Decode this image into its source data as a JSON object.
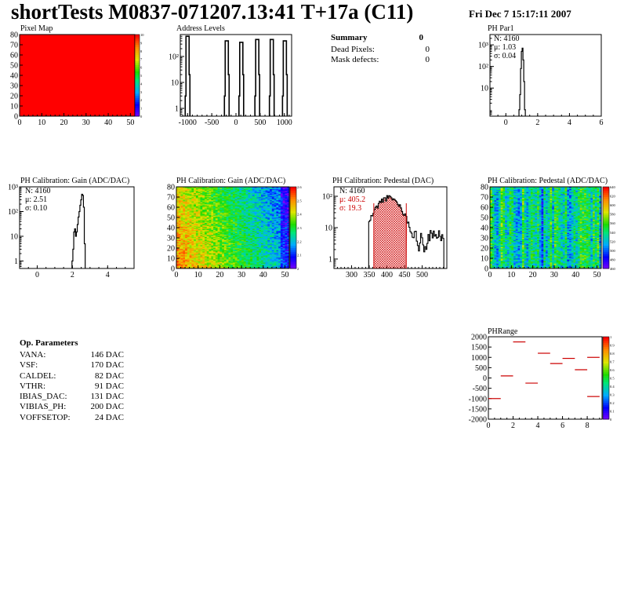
{
  "header": {
    "title": "shortTests M0837-071207.13:41 T+17a (C11)",
    "date": "Fri Dec  7 15:17:11 2007"
  },
  "summary": {
    "title": "Summary",
    "total": "0",
    "rows": [
      {
        "label": "Dead Pixels:",
        "value": "0"
      },
      {
        "label": "Mask defects:",
        "value": "0"
      }
    ]
  },
  "op_params": {
    "title": "Op. Parameters",
    "rows": [
      {
        "label": "VANA:",
        "value": "146 DAC"
      },
      {
        "label": "VSF:",
        "value": "170 DAC"
      },
      {
        "label": "CALDEL:",
        "value": "82 DAC"
      },
      {
        "label": "VTHR:",
        "value": "91 DAC"
      },
      {
        "label": "IBIAS_DAC:",
        "value": "131 DAC"
      },
      {
        "label": "VIBIAS_PH:",
        "value": "200 DAC"
      },
      {
        "label": "VOFFSETOP:",
        "value": "24 DAC"
      }
    ]
  },
  "colors": {
    "heat_uniform": "#ff0000",
    "hist_line": "#000000",
    "pedestal_hatch": "#cc0000",
    "cut_line": "#cc0000",
    "stats_red": "#cc0000"
  },
  "chart_data": [
    {
      "id": "pixel-map",
      "type": "heatmap",
      "title": "Pixel Map",
      "xlim": [
        0,
        52
      ],
      "ylim": [
        0,
        80
      ],
      "xticks": [
        "0",
        "10",
        "20",
        "30",
        "40",
        "50"
      ],
      "yticks": [
        "0",
        "10",
        "20",
        "30",
        "40",
        "50",
        "60",
        "70",
        "80"
      ],
      "uniform_value": 10,
      "zlim": [
        0,
        10
      ],
      "palette_ticks": [
        "10",
        "9",
        "8",
        "7",
        "6",
        "5",
        "4",
        "3",
        "2",
        "1",
        "0"
      ]
    },
    {
      "id": "address-levels",
      "type": "bar",
      "title": "Address Levels",
      "xlim": [
        -1150,
        1150
      ],
      "yscale": "log",
      "ylim": [
        0.5,
        700
      ],
      "xticks": [
        "-1000",
        "-500",
        "0",
        "500",
        "1000"
      ],
      "yticks": [
        "1",
        "10",
        "10²"
      ],
      "peaks": [
        {
          "x": -1000,
          "y": 600
        },
        {
          "x": -190,
          "y": 400
        },
        {
          "x": 110,
          "y": 350
        },
        {
          "x": 440,
          "y": 450
        },
        {
          "x": 740,
          "y": 450
        },
        {
          "x": 1010,
          "y": 400
        }
      ]
    },
    {
      "id": "ph-par1",
      "type": "bar",
      "title": "PH Par1",
      "xlim": [
        -1,
        6
      ],
      "yscale": "log",
      "ylim": [
        0.5,
        3000
      ],
      "xticks": [
        "0",
        "2",
        "4",
        "6"
      ],
      "yticks": [
        "10",
        "10²",
        "10³"
      ],
      "stats": {
        "N": "N: 4160",
        "mu": "μ: 1.03",
        "sigma": "σ: 0.04"
      },
      "x": [
        0.85,
        0.9,
        0.95,
        1.0,
        1.05,
        1.1,
        1.15,
        1.2
      ],
      "values": [
        1,
        5,
        80,
        500,
        700,
        200,
        20,
        1
      ]
    },
    {
      "id": "ph-gain-1d",
      "type": "bar",
      "title": "PH Calibration: Gain (ADC/DAC)",
      "xlim": [
        -1,
        5.5
      ],
      "yscale": "log",
      "ylim": [
        0.5,
        1000
      ],
      "xticks": [
        "0",
        "2",
        "4"
      ],
      "yticks": [
        "1",
        "10",
        "10²",
        "10³"
      ],
      "stats": {
        "N": "N: 4160",
        "mu": "μ: 2.51",
        "sigma": "σ: 0.10"
      },
      "x": [
        2.0,
        2.05,
        2.1,
        2.15,
        2.2,
        2.25,
        2.3,
        2.35,
        2.4,
        2.45,
        2.5,
        2.55,
        2.6,
        2.65,
        2.7
      ],
      "values": [
        1,
        3,
        15,
        20,
        10,
        15,
        30,
        60,
        100,
        180,
        300,
        500,
        450,
        150,
        5
      ]
    },
    {
      "id": "ph-gain-map",
      "type": "heatmap",
      "title": "PH Calibration: Gain (ADC/DAC)",
      "xlim": [
        0,
        52
      ],
      "ylim": [
        0,
        80
      ],
      "xticks": [
        "0",
        "10",
        "20",
        "30",
        "40",
        "50"
      ],
      "yticks": [
        "0",
        "10",
        "20",
        "30",
        "40",
        "50",
        "60",
        "70",
        "80"
      ],
      "zlim": [
        2.0,
        2.7
      ],
      "palette_ticks": [
        "2.6",
        "2.5",
        "2.4",
        "2.3",
        "2.2",
        "2.1",
        "2"
      ]
    },
    {
      "id": "ph-pedestal-1d",
      "type": "bar",
      "title": "PH Calibration: Pedestal (DAC)",
      "xlim": [
        250,
        570
      ],
      "yscale": "log",
      "ylim": [
        0.5,
        200
      ],
      "xticks": [
        "300",
        "350",
        "400",
        "450",
        "500"
      ],
      "yticks": [
        "1",
        "10",
        "10²"
      ],
      "stats": {
        "N": "N: 4160",
        "mu": "μ: 405.2",
        "sigma": "σ: 19.3"
      },
      "cut_lines": [
        363,
        455
      ],
      "fill_range": [
        363,
        455
      ],
      "mean": 405,
      "sigma_value": 19.3,
      "peak": 90,
      "range": [
        350,
        560
      ]
    },
    {
      "id": "ph-pedestal-map",
      "type": "heatmap",
      "title": "PH Calibration: Pedestal (ADC/DAC)",
      "xlim": [
        0,
        52
      ],
      "ylim": [
        0,
        80
      ],
      "xticks": [
        "0",
        "10",
        "20",
        "30",
        "40",
        "50"
      ],
      "yticks": [
        "0",
        "10",
        "20",
        "30",
        "40",
        "50",
        "60",
        "70",
        "80"
      ],
      "zlim": [
        460,
        640
      ],
      "palette_ticks": [
        "640",
        "620",
        "600",
        "580",
        "560",
        "540",
        "520",
        "500",
        "480",
        "460"
      ]
    },
    {
      "id": "ph-range",
      "type": "scatter",
      "title": "PHRange",
      "xlim": [
        0,
        9.2
      ],
      "ylim": [
        -2000,
        2000
      ],
      "xticks": [
        "0",
        "2",
        "4",
        "6",
        "8"
      ],
      "yticks": [
        "2000",
        "1500",
        "1000",
        "500",
        "0",
        "-500",
        "-1000",
        "-1500",
        "-2000"
      ],
      "segments": [
        {
          "x": 0,
          "y": -1000
        },
        {
          "x": 1,
          "y": 100
        },
        {
          "x": 2,
          "y": 1750
        },
        {
          "x": 3,
          "y": -250
        },
        {
          "x": 4,
          "y": 1200
        },
        {
          "x": 5,
          "y": 700
        },
        {
          "x": 6,
          "y": 950
        },
        {
          "x": 7,
          "y": 400
        },
        {
          "x": 8,
          "y": 1000
        },
        {
          "x": 8,
          "y": -900
        }
      ],
      "palette_ticks": [
        "1",
        "0.9",
        "0.8",
        "0.7",
        "0.6",
        "0.5",
        "0.4",
        "0.3",
        "0.2",
        "0.1",
        "0"
      ]
    }
  ]
}
